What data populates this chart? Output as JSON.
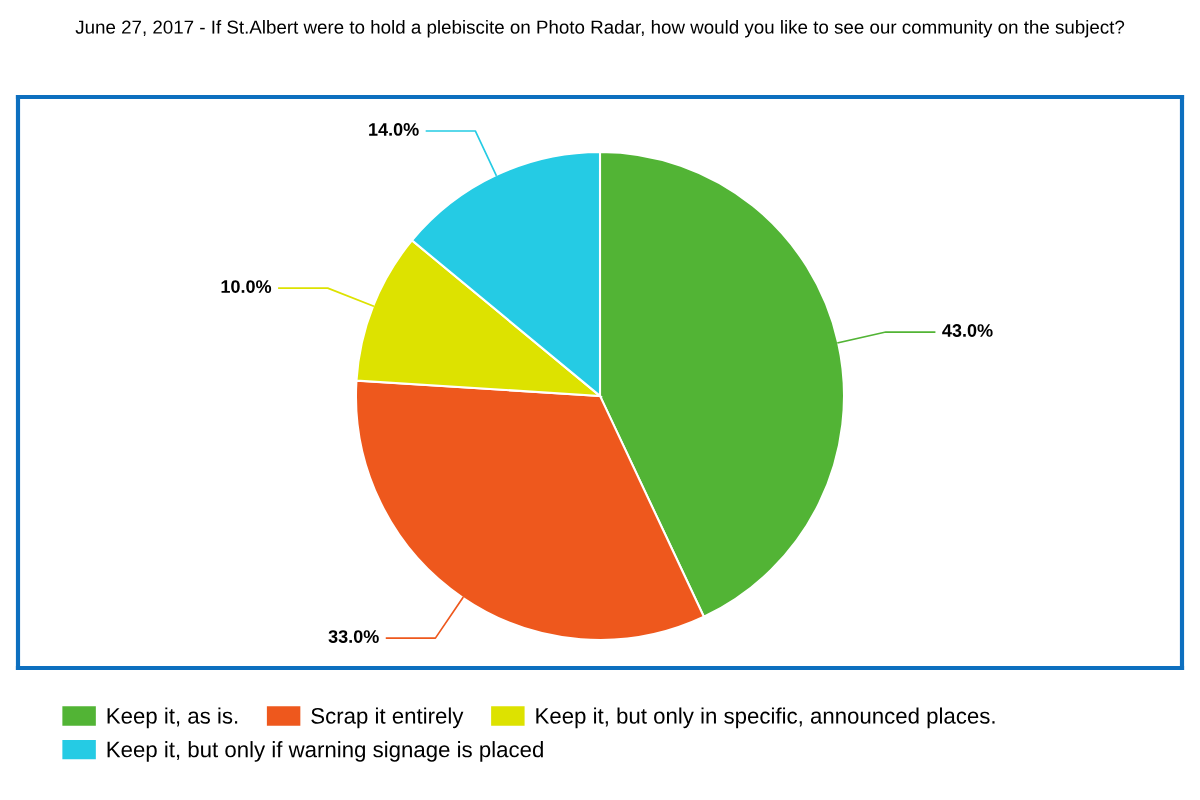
{
  "chart_data": {
    "type": "pie",
    "title": "June 27, 2017 - If St.Albert were to hold a plebiscite on Photo Radar, how would you like to see our community on the subject?",
    "categories": [
      "Keep it, as is.",
      "Scrap it entirely",
      "Keep it, but only in specific, announced places.",
      "Keep it, but only if warning signage is placed"
    ],
    "values": [
      43,
      33,
      10,
      14
    ],
    "colors": [
      "#52b435",
      "#ee581d",
      "#dde200",
      "#25cbe4"
    ],
    "value_labels": [
      "43.0%",
      "33.0%",
      "10.0%",
      "14.0%"
    ],
    "legend": "bottom"
  }
}
